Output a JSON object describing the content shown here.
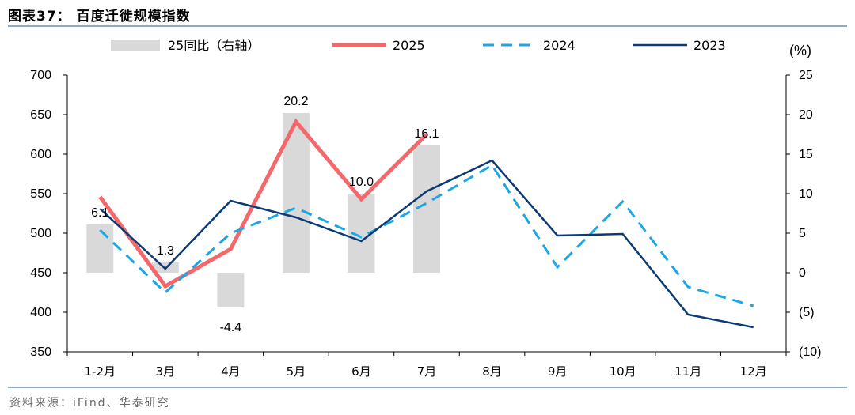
{
  "figure": {
    "title": "图表37：  百度迁徙规模指数",
    "source": "资料来源：iFind、华泰研究"
  },
  "chart_data": {
    "type": "bar",
    "categories": [
      "1-2月",
      "3月",
      "4月",
      "5月",
      "6月",
      "7月",
      "8月",
      "9月",
      "10月",
      "11月",
      "12月"
    ],
    "series": [
      {
        "name": "25同比（右轴）",
        "type": "bar",
        "axis": "right",
        "color": "#d9d9d9",
        "values": [
          6.1,
          1.3,
          -4.4,
          20.2,
          10.0,
          16.1,
          null,
          null,
          null,
          null,
          null
        ],
        "labels": [
          "6.1",
          "1.3",
          "-4.4",
          "20.2",
          "10.0",
          "16.1",
          null,
          null,
          null,
          null,
          null
        ]
      },
      {
        "name": "2025",
        "type": "line",
        "axis": "left",
        "color": "#f4686b",
        "style": "solid",
        "values": [
          546,
          433,
          480,
          641,
          543,
          625,
          null,
          null,
          null,
          null,
          null
        ]
      },
      {
        "name": "2024",
        "type": "line",
        "axis": "left",
        "color": "#1ca6e6",
        "style": "dashed",
        "values": [
          504,
          425,
          500,
          532,
          495,
          538,
          586,
          457,
          540,
          432,
          408
        ]
      },
      {
        "name": "2023",
        "type": "line",
        "axis": "left",
        "color": "#0b3a75",
        "style": "solid",
        "values": [
          531,
          455,
          541,
          520,
          490,
          553,
          592,
          497,
          499,
          397,
          381
        ]
      }
    ],
    "y_left": {
      "min": 350,
      "max": 700,
      "step": 50,
      "tick_labels": [
        "350",
        "400",
        "450",
        "500",
        "550",
        "600",
        "650",
        "700"
      ]
    },
    "y_right": {
      "min": -10,
      "max": 25,
      "step": 5,
      "unit": "(%)",
      "tick_labels": [
        "(10)",
        "(5)",
        "0",
        "5",
        "10",
        "15",
        "20",
        "25"
      ]
    },
    "grid": false,
    "legend_position": "top"
  }
}
